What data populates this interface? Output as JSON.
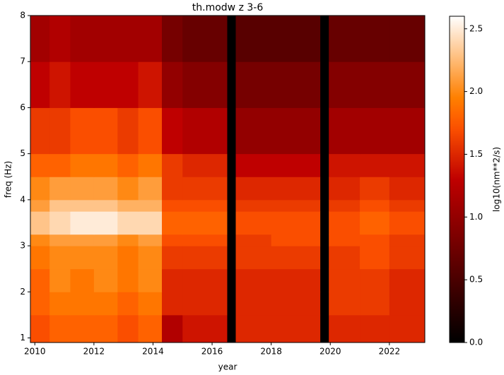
{
  "chart_data": {
    "type": "heatmap",
    "title": "th.modw z 3-6",
    "x_label": "year",
    "y_label": "freq (Hz)",
    "colorbar_label": "log10(nm**2/s)",
    "colormap": "gist_heat",
    "xlim": [
      2009.85,
      2023.2
    ],
    "ylim": [
      0.9,
      8
    ],
    "clim": [
      0,
      2.6
    ],
    "xticks": [
      2010,
      2012,
      2014,
      2016,
      2018,
      2020,
      2022
    ],
    "yticks": [
      1,
      2,
      3,
      4,
      5,
      6,
      7,
      8
    ],
    "cticks": [
      {
        "value": 0,
        "label": "0.0"
      },
      0.5,
      {
        "value": 1,
        "label": "1.0"
      },
      1.5,
      {
        "value": 2,
        "label": "2.0"
      },
      2.5
    ],
    "x_edges": [
      2009.85,
      2010.5,
      2011.2,
      2012,
      2012.8,
      2013.5,
      2014.3,
      2015,
      2016.5,
      2016.8,
      2018,
      2019.65,
      2019.95,
      2021,
      2022,
      2023.2
    ],
    "y_edges": [
      0.9,
      1.5,
      2,
      2.5,
      3,
      3.25,
      3.75,
      4,
      4.5,
      5,
      6,
      7,
      8
    ],
    "z": [
      [
        1.7,
        1.8,
        1.8,
        1.8,
        1.7,
        1.8,
        1.2,
        1.4,
        null,
        1.5,
        1.5,
        null,
        1.5,
        1.5,
        1.5
      ],
      [
        1.8,
        1.9,
        1.9,
        1.9,
        1.8,
        1.9,
        1.5,
        1.5,
        null,
        1.5,
        1.5,
        null,
        1.6,
        1.6,
        1.5
      ],
      [
        1.8,
        2.0,
        1.9,
        2.0,
        1.9,
        2.0,
        1.5,
        1.5,
        null,
        1.5,
        1.5,
        null,
        1.6,
        1.6,
        1.5
      ],
      [
        1.9,
        2.0,
        2.0,
        2.0,
        1.9,
        2.0,
        1.6,
        1.6,
        null,
        1.6,
        1.6,
        null,
        1.6,
        1.7,
        1.6
      ],
      [
        2.0,
        2.1,
        2.1,
        2.1,
        2.0,
        2.1,
        1.7,
        1.7,
        null,
        1.6,
        1.7,
        null,
        1.7,
        1.7,
        1.6
      ],
      [
        2.3,
        2.4,
        2.5,
        2.5,
        2.4,
        2.4,
        1.8,
        1.8,
        null,
        1.7,
        1.7,
        null,
        1.7,
        1.8,
        1.7
      ],
      [
        2.1,
        2.3,
        2.3,
        2.3,
        2.2,
        2.2,
        1.7,
        1.7,
        null,
        1.6,
        1.6,
        null,
        1.6,
        1.7,
        1.6
      ],
      [
        2.0,
        2.1,
        2.1,
        2.1,
        2.0,
        2.1,
        1.6,
        1.6,
        null,
        1.5,
        1.5,
        null,
        1.5,
        1.6,
        1.5
      ],
      [
        1.8,
        1.8,
        1.9,
        1.9,
        1.8,
        1.9,
        1.6,
        1.5,
        null,
        1.3,
        1.3,
        null,
        1.4,
        1.4,
        1.4
      ],
      [
        1.6,
        1.6,
        1.7,
        1.7,
        1.6,
        1.7,
        1.3,
        1.2,
        null,
        1.0,
        1.0,
        null,
        1.1,
        1.1,
        1.1
      ],
      [
        1.3,
        1.4,
        1.3,
        1.3,
        1.3,
        1.4,
        1.0,
        0.9,
        null,
        0.8,
        0.8,
        null,
        0.9,
        0.9,
        0.9
      ],
      [
        1.1,
        1.2,
        1.1,
        1.1,
        1.1,
        1.1,
        0.8,
        0.7,
        null,
        0.6,
        0.6,
        null,
        0.7,
        0.7,
        0.7
      ]
    ]
  }
}
